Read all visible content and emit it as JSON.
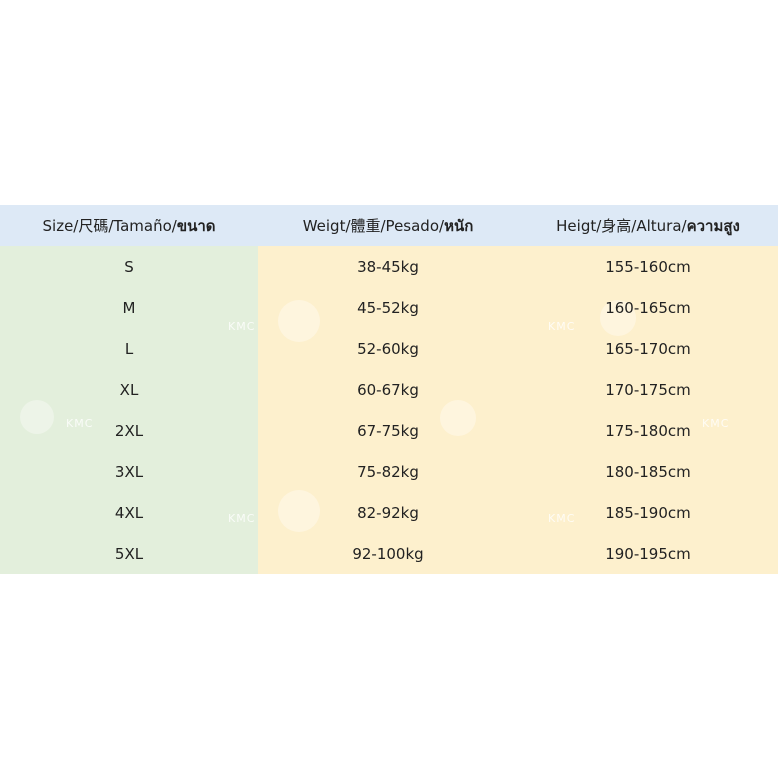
{
  "table": {
    "header": [
      {
        "text": "Size/尺碼/Tamaño/",
        "bold": "ขนาด"
      },
      {
        "text": "Weigt/體重/Pesado/",
        "bold": "หนัก"
      },
      {
        "text": "Heigt/身高/Altura/",
        "bold": "ความสูง"
      }
    ],
    "rows": [
      [
        "S",
        "38-45kg",
        "155-160cm"
      ],
      [
        "M",
        "45-52kg",
        "160-165cm"
      ],
      [
        "L",
        "52-60kg",
        "165-170cm"
      ],
      [
        "XL",
        "60-67kg",
        "170-175cm"
      ],
      [
        "2XL",
        "67-75kg",
        "175-180cm"
      ],
      [
        "3XL",
        "75-82kg",
        "180-185cm"
      ],
      [
        "4XL",
        "82-92kg",
        "185-190cm"
      ],
      [
        "5XL",
        "92-100kg",
        "190-195cm"
      ]
    ],
    "watermark": "KMC"
  }
}
